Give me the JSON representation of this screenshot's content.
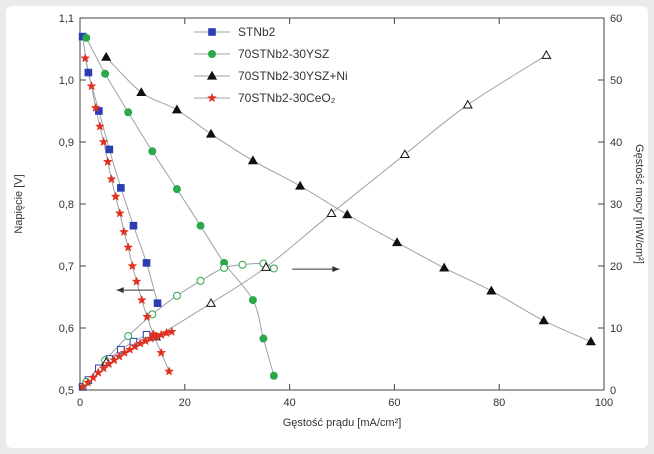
{
  "chart_data": {
    "type": "scatter",
    "title": "",
    "xlabel": "Gęstość prądu [mA/cm²]",
    "ylabel_left": "Napięcie [V]",
    "ylabel_right": "Gęstość mocy [mW/cm²]",
    "xlim": [
      0,
      100
    ],
    "ylim_left": [
      0.5,
      1.1
    ],
    "ylim_right": [
      0,
      60
    ],
    "x_ticks": [
      "0",
      "20",
      "40",
      "60",
      "80",
      "100"
    ],
    "y_left_ticks": [
      "0,5",
      "0,6",
      "0,7",
      "0,8",
      "0,9",
      "1,0",
      "1,1"
    ],
    "y_right_ticks": [
      "0",
      "10",
      "20",
      "30",
      "40",
      "50",
      "60"
    ],
    "grid": false,
    "legend_position": "top-center",
    "series": [
      {
        "name": "STNb2",
        "color": "#2b3db3",
        "marker": "square",
        "voltage": [
          [
            0.5,
            1.07
          ],
          [
            1.6,
            1.012
          ],
          [
            3.6,
            0.95
          ],
          [
            5.6,
            0.888
          ],
          [
            7.8,
            0.826
          ],
          [
            10.2,
            0.765
          ],
          [
            12.7,
            0.705
          ],
          [
            14.8,
            0.64
          ]
        ],
        "power": [
          [
            0.5,
            0.5
          ],
          [
            1.6,
            1.6
          ],
          [
            3.6,
            3.5
          ],
          [
            5.6,
            5.0
          ],
          [
            7.8,
            6.5
          ],
          [
            10.2,
            7.8
          ],
          [
            12.7,
            8.9
          ]
        ]
      },
      {
        "name": "70STNb2-30YSZ",
        "color": "#2aa84a",
        "marker": "circle",
        "voltage": [
          [
            1.2,
            1.068
          ],
          [
            4.8,
            1.01
          ],
          [
            9.2,
            0.948
          ],
          [
            13.8,
            0.885
          ],
          [
            18.5,
            0.824
          ],
          [
            23.0,
            0.765
          ],
          [
            27.5,
            0.705
          ],
          [
            33.0,
            0.645
          ],
          [
            35.0,
            0.583
          ],
          [
            37.0,
            0.523
          ]
        ],
        "power": [
          [
            1.2,
            1.3
          ],
          [
            4.8,
            4.8
          ],
          [
            9.2,
            8.7
          ],
          [
            13.8,
            12.2
          ],
          [
            18.5,
            15.2
          ],
          [
            23.0,
            17.6
          ],
          [
            27.5,
            19.7
          ],
          [
            31.0,
            20.2
          ],
          [
            35.0,
            20.4
          ],
          [
            37.0,
            19.6
          ]
        ]
      },
      {
        "name": "70STNb2-30YSZ+Ni",
        "color": "#111111",
        "marker": "triangle",
        "voltage": [
          [
            5.0,
            1.037
          ],
          [
            11.7,
            0.98
          ],
          [
            18.5,
            0.952
          ],
          [
            25.0,
            0.913
          ],
          [
            33.0,
            0.87
          ],
          [
            42.0,
            0.829
          ],
          [
            51.0,
            0.783
          ],
          [
            60.5,
            0.738
          ],
          [
            69.5,
            0.697
          ],
          [
            78.5,
            0.66
          ],
          [
            88.5,
            0.612
          ],
          [
            97.5,
            0.578
          ]
        ],
        "power": [
          [
            5.0,
            4.5
          ],
          [
            14.5,
            8.6
          ],
          [
            25.0,
            14.0
          ],
          [
            35.5,
            19.8
          ],
          [
            48.0,
            28.5
          ],
          [
            62.0,
            38.0
          ],
          [
            74.0,
            46.0
          ],
          [
            89.0,
            54.0
          ]
        ]
      },
      {
        "name": "70STNb2-30CeO₂",
        "color": "#e03020",
        "marker": "star",
        "voltage": [
          [
            1.0,
            1.035
          ],
          [
            2.2,
            0.99
          ],
          [
            3.0,
            0.955
          ],
          [
            3.8,
            0.925
          ],
          [
            4.5,
            0.9
          ],
          [
            5.3,
            0.868
          ],
          [
            6.0,
            0.84
          ],
          [
            6.8,
            0.812
          ],
          [
            7.6,
            0.785
          ],
          [
            8.4,
            0.755
          ],
          [
            9.2,
            0.73
          ],
          [
            10.0,
            0.7
          ],
          [
            10.8,
            0.675
          ],
          [
            11.8,
            0.645
          ],
          [
            12.8,
            0.618
          ],
          [
            14.0,
            0.59
          ],
          [
            15.5,
            0.56
          ],
          [
            17.0,
            0.53
          ]
        ],
        "power": [
          [
            0.5,
            0.5
          ],
          [
            1.5,
            1.2
          ],
          [
            2.5,
            2.0
          ],
          [
            3.5,
            2.8
          ],
          [
            4.5,
            3.5
          ],
          [
            5.5,
            4.2
          ],
          [
            6.5,
            4.8
          ],
          [
            7.5,
            5.4
          ],
          [
            8.5,
            6.0
          ],
          [
            9.5,
            6.5
          ],
          [
            10.5,
            7.0
          ],
          [
            11.5,
            7.5
          ],
          [
            12.5,
            7.9
          ],
          [
            13.5,
            8.3
          ],
          [
            14.5,
            8.6
          ],
          [
            15.5,
            8.9
          ],
          [
            16.5,
            9.2
          ],
          [
            17.5,
            9.4
          ]
        ]
      }
    ]
  }
}
